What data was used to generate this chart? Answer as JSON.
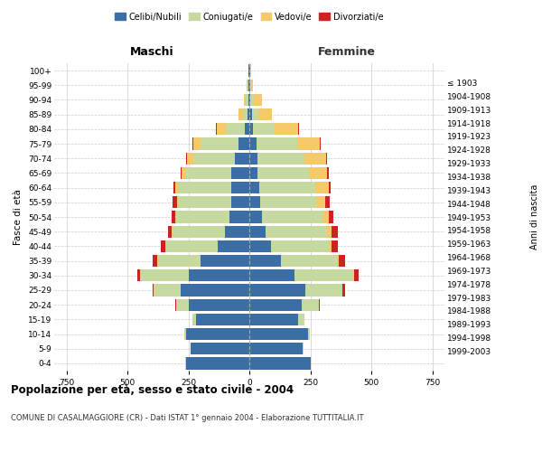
{
  "age_groups": [
    "0-4",
    "5-9",
    "10-14",
    "15-19",
    "20-24",
    "25-29",
    "30-34",
    "35-39",
    "40-44",
    "45-49",
    "50-54",
    "55-59",
    "60-64",
    "65-69",
    "70-74",
    "75-79",
    "80-84",
    "85-89",
    "90-94",
    "95-99",
    "100+"
  ],
  "birth_years": [
    "1999-2003",
    "1994-1998",
    "1989-1993",
    "1984-1988",
    "1979-1983",
    "1974-1978",
    "1969-1973",
    "1964-1968",
    "1959-1963",
    "1954-1958",
    "1949-1953",
    "1944-1948",
    "1939-1943",
    "1934-1938",
    "1929-1933",
    "1924-1928",
    "1919-1923",
    "1914-1918",
    "1909-1913",
    "1904-1908",
    "≤ 1903"
  ],
  "colors": {
    "celibi": "#3a6ea5",
    "coniugati": "#c5d9a0",
    "vedovi": "#f5c96a",
    "divorziati": "#cc2222"
  },
  "males": {
    "celibi": [
      260,
      240,
      260,
      220,
      250,
      280,
      250,
      200,
      130,
      100,
      80,
      75,
      75,
      75,
      60,
      45,
      20,
      8,
      5,
      3,
      2
    ],
    "coniugati": [
      2,
      2,
      5,
      15,
      50,
      110,
      195,
      175,
      210,
      215,
      220,
      215,
      215,
      185,
      170,
      155,
      75,
      18,
      8,
      4,
      2
    ],
    "vedovi": [
      0,
      0,
      0,
      0,
      1,
      2,
      2,
      3,
      4,
      5,
      5,
      8,
      12,
      18,
      25,
      30,
      40,
      18,
      10,
      3,
      1
    ],
    "divorziati": [
      0,
      0,
      0,
      0,
      2,
      5,
      12,
      18,
      20,
      15,
      15,
      15,
      8,
      5,
      5,
      5,
      3,
      0,
      0,
      0,
      0
    ]
  },
  "females": {
    "celibi": [
      250,
      220,
      240,
      200,
      215,
      230,
      185,
      130,
      90,
      65,
      50,
      45,
      40,
      35,
      35,
      30,
      15,
      10,
      5,
      3,
      2
    ],
    "coniugati": [
      2,
      3,
      8,
      25,
      70,
      150,
      240,
      230,
      235,
      255,
      250,
      230,
      230,
      210,
      190,
      165,
      90,
      28,
      15,
      5,
      2
    ],
    "vedovi": [
      0,
      0,
      0,
      0,
      2,
      3,
      5,
      8,
      12,
      18,
      25,
      35,
      55,
      75,
      90,
      95,
      95,
      55,
      30,
      8,
      2
    ],
    "divorziati": [
      0,
      0,
      0,
      0,
      3,
      8,
      18,
      25,
      25,
      25,
      20,
      18,
      10,
      5,
      5,
      3,
      2,
      0,
      0,
      0,
      0
    ]
  },
  "xlim": 800,
  "title": "Popolazione per età, sesso e stato civile - 2004",
  "subtitle": "COMUNE DI CASALMAGGIORE (CR) - Dati ISTAT 1° gennaio 2004 - Elaborazione TUTTITALIA.IT",
  "ylabel": "Fasce di età",
  "ylabel2": "Anni di nascita",
  "xlabel_left": "Maschi",
  "xlabel_right": "Femmine",
  "legend_labels": [
    "Celibi/Nubili",
    "Coniugati/e",
    "Vedovi/e",
    "Divorziati/e"
  ],
  "bg_color": "#ffffff",
  "grid_color": "#cccccc"
}
